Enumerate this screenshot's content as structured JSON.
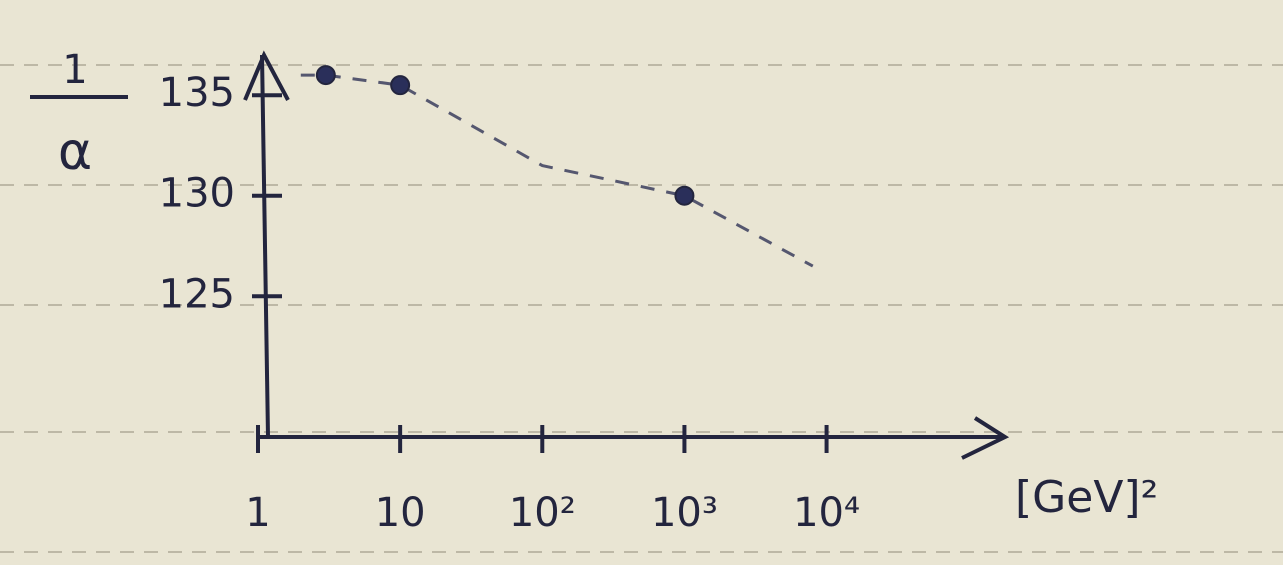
{
  "chart_data": {
    "type": "scatter",
    "ylabel": {
      "numerator": "1",
      "denominator": "α"
    },
    "xlabel": "[GeV]²",
    "x": [
      3,
      10,
      1000
    ],
    "values": [
      136,
      135.5,
      130
    ],
    "trend": {
      "x": [
        2,
        3,
        10,
        100,
        1000,
        8000
      ],
      "values": [
        136,
        136,
        135.5,
        131.5,
        130,
        126.5
      ]
    },
    "color": "#2a2f5a",
    "log_x": true,
    "xlim": [
      1,
      180000
    ],
    "ylim": [
      118,
      137
    ],
    "xticks": [
      1,
      10,
      {
        "value": 100,
        "label": "10²"
      },
      {
        "value": 1000,
        "label": "10³"
      },
      {
        "value": 10000,
        "label": "10⁴"
      }
    ],
    "yticks": [
      125,
      130,
      135
    ]
  }
}
